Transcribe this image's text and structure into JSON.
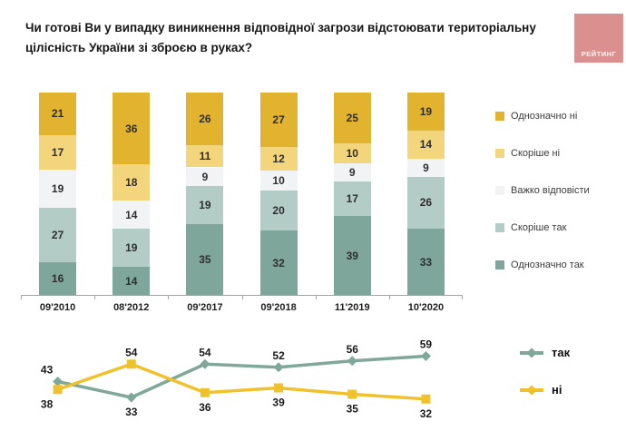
{
  "header": {
    "title": "Чи готові Ви у випадку виникнення відповідної загрози відстоювати територіальну цілісність України зі зброєю в руках?",
    "logo_text": "РЕЙТИНГ",
    "logo_color": "#D9908E"
  },
  "axis_color": "#A3A3A3",
  "chart_data": [
    {
      "type": "bar",
      "subtype": "stacked-100-percent",
      "title": "",
      "xlabel": "",
      "ylabel": "",
      "ylim": [
        0,
        100
      ],
      "grid": false,
      "legend_position": "right",
      "legend_order_top_to_bottom": [
        "Однозначно ні",
        "Скоріше ні",
        "Важко відповісти",
        "Скоріше так",
        "Однозначно так"
      ],
      "categories": [
        "09'2010",
        "08'2012",
        "09'2017",
        "09'2018",
        "11'2019",
        "10'2020"
      ],
      "series": [
        {
          "name": "Однозначно так",
          "color": "#7FA69B",
          "values": [
            16,
            14,
            35,
            32,
            39,
            33
          ]
        },
        {
          "name": "Скоріше так",
          "color": "#B3CCC5",
          "values": [
            27,
            19,
            19,
            20,
            17,
            26
          ]
        },
        {
          "name": "Важко відповісти",
          "color": "#F2F3F5",
          "values": [
            19,
            14,
            9,
            10,
            9,
            9
          ]
        },
        {
          "name": "Скоріше ні",
          "color": "#F3D57C",
          "values": [
            17,
            18,
            11,
            12,
            10,
            14
          ]
        },
        {
          "name": "Однозначно ні",
          "color": "#E2B32E",
          "values": [
            21,
            36,
            26,
            27,
            25,
            19
          ]
        }
      ]
    },
    {
      "type": "line",
      "title": "",
      "xlabel": "",
      "ylabel": "",
      "grid": false,
      "data_labels": true,
      "legend_position": "right",
      "x": [
        "09'2010",
        "08'2012",
        "09'2017",
        "09'2018",
        "11'2019",
        "10'2020"
      ],
      "series": [
        {
          "name": "так",
          "color": "#7FA79A",
          "marker": "diamond",
          "values": [
            43,
            33,
            54,
            52,
            56,
            59
          ]
        },
        {
          "name": "ні",
          "color": "#EFC22D",
          "marker": "square",
          "values": [
            38,
            54,
            36,
            39,
            35,
            32
          ]
        }
      ]
    }
  ]
}
